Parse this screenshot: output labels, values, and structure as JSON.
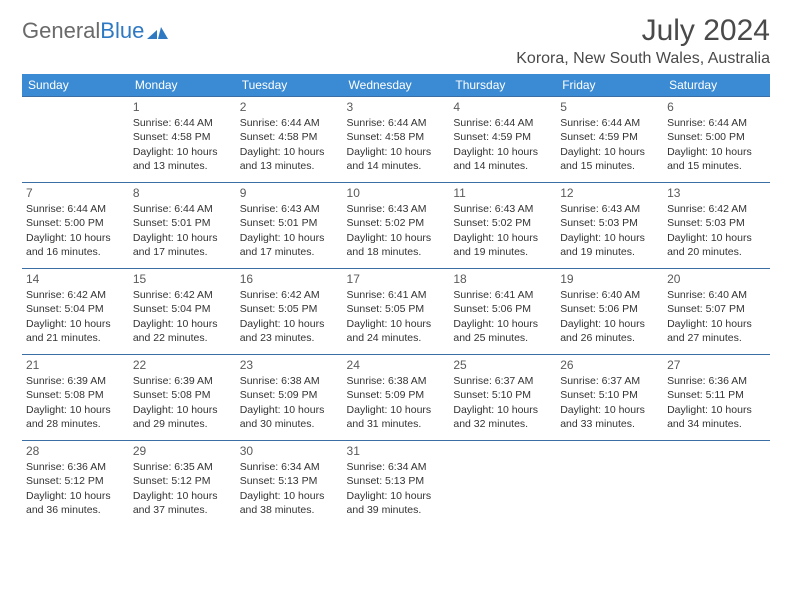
{
  "brand": {
    "word1": "General",
    "word2": "Blue"
  },
  "colors": {
    "header_bg": "#3b8bd4",
    "header_fg": "#ffffff",
    "row_border": "#3b6fa3",
    "text": "#333333",
    "title": "#4a4a4a",
    "brand_gray": "#6a6a6a",
    "brand_blue": "#2f79c2",
    "background": "#ffffff"
  },
  "title": "July 2024",
  "location": "Korora, New South Wales, Australia",
  "weekdays": [
    "Sunday",
    "Monday",
    "Tuesday",
    "Wednesday",
    "Thursday",
    "Friday",
    "Saturday"
  ],
  "layout": {
    "leading_blanks": 1
  },
  "label_templates": {
    "sunrise_prefix": "Sunrise: ",
    "sunset_prefix": "Sunset: ",
    "daylight_prefix": "Daylight: ",
    "daylight_hours_word": " hours and ",
    "daylight_minutes_word": " minutes."
  },
  "days": [
    {
      "n": 1,
      "sr": "6:44 AM",
      "ss": "4:58 PM",
      "dh": 10,
      "dm": 13
    },
    {
      "n": 2,
      "sr": "6:44 AM",
      "ss": "4:58 PM",
      "dh": 10,
      "dm": 13
    },
    {
      "n": 3,
      "sr": "6:44 AM",
      "ss": "4:58 PM",
      "dh": 10,
      "dm": 14
    },
    {
      "n": 4,
      "sr": "6:44 AM",
      "ss": "4:59 PM",
      "dh": 10,
      "dm": 14
    },
    {
      "n": 5,
      "sr": "6:44 AM",
      "ss": "4:59 PM",
      "dh": 10,
      "dm": 15
    },
    {
      "n": 6,
      "sr": "6:44 AM",
      "ss": "5:00 PM",
      "dh": 10,
      "dm": 15
    },
    {
      "n": 7,
      "sr": "6:44 AM",
      "ss": "5:00 PM",
      "dh": 10,
      "dm": 16
    },
    {
      "n": 8,
      "sr": "6:44 AM",
      "ss": "5:01 PM",
      "dh": 10,
      "dm": 17
    },
    {
      "n": 9,
      "sr": "6:43 AM",
      "ss": "5:01 PM",
      "dh": 10,
      "dm": 17
    },
    {
      "n": 10,
      "sr": "6:43 AM",
      "ss": "5:02 PM",
      "dh": 10,
      "dm": 18
    },
    {
      "n": 11,
      "sr": "6:43 AM",
      "ss": "5:02 PM",
      "dh": 10,
      "dm": 19
    },
    {
      "n": 12,
      "sr": "6:43 AM",
      "ss": "5:03 PM",
      "dh": 10,
      "dm": 19
    },
    {
      "n": 13,
      "sr": "6:42 AM",
      "ss": "5:03 PM",
      "dh": 10,
      "dm": 20
    },
    {
      "n": 14,
      "sr": "6:42 AM",
      "ss": "5:04 PM",
      "dh": 10,
      "dm": 21
    },
    {
      "n": 15,
      "sr": "6:42 AM",
      "ss": "5:04 PM",
      "dh": 10,
      "dm": 22
    },
    {
      "n": 16,
      "sr": "6:42 AM",
      "ss": "5:05 PM",
      "dh": 10,
      "dm": 23
    },
    {
      "n": 17,
      "sr": "6:41 AM",
      "ss": "5:05 PM",
      "dh": 10,
      "dm": 24
    },
    {
      "n": 18,
      "sr": "6:41 AM",
      "ss": "5:06 PM",
      "dh": 10,
      "dm": 25
    },
    {
      "n": 19,
      "sr": "6:40 AM",
      "ss": "5:06 PM",
      "dh": 10,
      "dm": 26
    },
    {
      "n": 20,
      "sr": "6:40 AM",
      "ss": "5:07 PM",
      "dh": 10,
      "dm": 27
    },
    {
      "n": 21,
      "sr": "6:39 AM",
      "ss": "5:08 PM",
      "dh": 10,
      "dm": 28
    },
    {
      "n": 22,
      "sr": "6:39 AM",
      "ss": "5:08 PM",
      "dh": 10,
      "dm": 29
    },
    {
      "n": 23,
      "sr": "6:38 AM",
      "ss": "5:09 PM",
      "dh": 10,
      "dm": 30
    },
    {
      "n": 24,
      "sr": "6:38 AM",
      "ss": "5:09 PM",
      "dh": 10,
      "dm": 31
    },
    {
      "n": 25,
      "sr": "6:37 AM",
      "ss": "5:10 PM",
      "dh": 10,
      "dm": 32
    },
    {
      "n": 26,
      "sr": "6:37 AM",
      "ss": "5:10 PM",
      "dh": 10,
      "dm": 33
    },
    {
      "n": 27,
      "sr": "6:36 AM",
      "ss": "5:11 PM",
      "dh": 10,
      "dm": 34
    },
    {
      "n": 28,
      "sr": "6:36 AM",
      "ss": "5:12 PM",
      "dh": 10,
      "dm": 36
    },
    {
      "n": 29,
      "sr": "6:35 AM",
      "ss": "5:12 PM",
      "dh": 10,
      "dm": 37
    },
    {
      "n": 30,
      "sr": "6:34 AM",
      "ss": "5:13 PM",
      "dh": 10,
      "dm": 38
    },
    {
      "n": 31,
      "sr": "6:34 AM",
      "ss": "5:13 PM",
      "dh": 10,
      "dm": 39
    }
  ]
}
